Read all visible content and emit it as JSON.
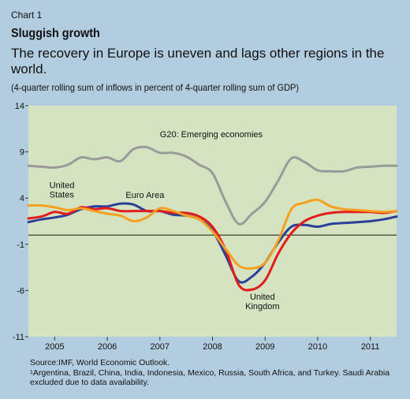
{
  "chart_label": "Chart 1",
  "title": "Sluggish growth",
  "subtitle": "The recovery in Europe is uneven and lags other regions in the world.",
  "note": "(4-quarter rolling sum of inflows in percent of 4-quarter rolling sum of GDP)",
  "source": "Source:IMF, World Economic Outlook.",
  "footnote_marker": "1",
  "footnote": "Argentina, Brazil, China, India, Indonesia, Mexico, Russia, South Africa, and Turkey. Saudi Arabia excluded due to data availability.",
  "chart_data": {
    "type": "line",
    "ylim": [
      -11,
      14
    ],
    "yticks": [
      14,
      9,
      4,
      -1,
      -6,
      -11
    ],
    "xlim": [
      2004.5,
      2011.5
    ],
    "xtick_labels": [
      "2005",
      "2006",
      "2007",
      "2008",
      "2009",
      "2010",
      "2011"
    ],
    "zero_line": 0,
    "grid": false,
    "series": [
      {
        "name": "G20: Emerging economies",
        "color": "#9a9a9a",
        "x": [
          2004.5,
          2004.75,
          2005.0,
          2005.25,
          2005.5,
          2005.75,
          2006.0,
          2006.25,
          2006.5,
          2006.75,
          2007.0,
          2007.25,
          2007.5,
          2007.75,
          2008.0,
          2008.25,
          2008.5,
          2008.75,
          2009.0,
          2009.25,
          2009.5,
          2009.75,
          2010.0,
          2010.25,
          2010.5,
          2010.75,
          2011.0,
          2011.25,
          2011.5
        ],
        "values": [
          7.5,
          7.4,
          7.3,
          7.6,
          8.4,
          8.2,
          8.4,
          8.0,
          9.3,
          9.5,
          8.9,
          8.9,
          8.5,
          7.6,
          6.7,
          3.6,
          1.2,
          2.3,
          3.6,
          5.9,
          8.3,
          7.9,
          7.0,
          6.9,
          6.9,
          7.3,
          7.4,
          7.5,
          7.5
        ]
      },
      {
        "name": "Euro Area",
        "color": "#2a3f9a",
        "x": [
          2004.5,
          2004.75,
          2005.0,
          2005.25,
          2005.5,
          2005.75,
          2006.0,
          2006.25,
          2006.5,
          2006.75,
          2007.0,
          2007.25,
          2007.5,
          2007.75,
          2008.0,
          2008.25,
          2008.5,
          2008.75,
          2009.0,
          2009.25,
          2009.5,
          2009.75,
          2010.0,
          2010.25,
          2010.5,
          2010.75,
          2011.0,
          2011.25,
          2011.5
        ],
        "values": [
          1.4,
          1.7,
          1.9,
          2.2,
          2.8,
          3.1,
          3.1,
          3.4,
          3.3,
          2.6,
          2.6,
          2.2,
          2.1,
          1.7,
          0.5,
          -2.2,
          -5.0,
          -4.5,
          -3.0,
          -0.8,
          0.9,
          1.1,
          0.9,
          1.2,
          1.3,
          1.4,
          1.5,
          1.7,
          2.0
        ]
      },
      {
        "name": "United Kingdom",
        "color": "#e21b1b",
        "x": [
          2004.5,
          2004.75,
          2005.0,
          2005.25,
          2005.5,
          2005.75,
          2006.0,
          2006.25,
          2006.5,
          2006.75,
          2007.0,
          2007.25,
          2007.5,
          2007.75,
          2008.0,
          2008.25,
          2008.5,
          2008.75,
          2009.0,
          2009.25,
          2009.5,
          2009.75,
          2010.0,
          2010.25,
          2010.5,
          2010.75,
          2011.0,
          2011.25,
          2011.5
        ],
        "values": [
          1.8,
          2.0,
          2.5,
          2.3,
          3.0,
          2.8,
          2.9,
          2.6,
          2.6,
          2.6,
          2.6,
          2.4,
          2.4,
          2.0,
          0.9,
          -1.6,
          -5.4,
          -5.9,
          -4.9,
          -2.0,
          0.2,
          1.5,
          2.1,
          2.4,
          2.5,
          2.5,
          2.5,
          2.4,
          2.6
        ]
      },
      {
        "name": "United States",
        "color": "#f5a01f",
        "x": [
          2004.5,
          2004.75,
          2005.0,
          2005.25,
          2005.5,
          2005.75,
          2006.0,
          2006.25,
          2006.5,
          2006.75,
          2007.0,
          2007.25,
          2007.5,
          2007.75,
          2008.0,
          2008.25,
          2008.5,
          2008.75,
          2009.0,
          2009.25,
          2009.5,
          2009.75,
          2010.0,
          2010.25,
          2010.5,
          2010.75,
          2011.0,
          2011.25,
          2011.5
        ],
        "values": [
          3.2,
          3.2,
          3.0,
          2.7,
          2.9,
          2.6,
          2.3,
          2.1,
          1.5,
          1.9,
          2.9,
          2.6,
          2.1,
          1.7,
          0.4,
          -1.5,
          -3.3,
          -3.6,
          -3.0,
          -0.6,
          2.8,
          3.5,
          3.8,
          3.1,
          2.8,
          2.7,
          2.6,
          2.5,
          2.6
        ]
      }
    ],
    "annotations": [
      {
        "text": "G20: Emerging economies",
        "x": 2007.0,
        "y": 10.6
      },
      {
        "text": "United States",
        "x": 2004.9,
        "y": 5.1
      },
      {
        "text": "Euro Area",
        "x": 2006.35,
        "y": 4.0
      },
      {
        "text": "United Kingdom",
        "x": 2008.95,
        "y": -7.0
      }
    ]
  }
}
